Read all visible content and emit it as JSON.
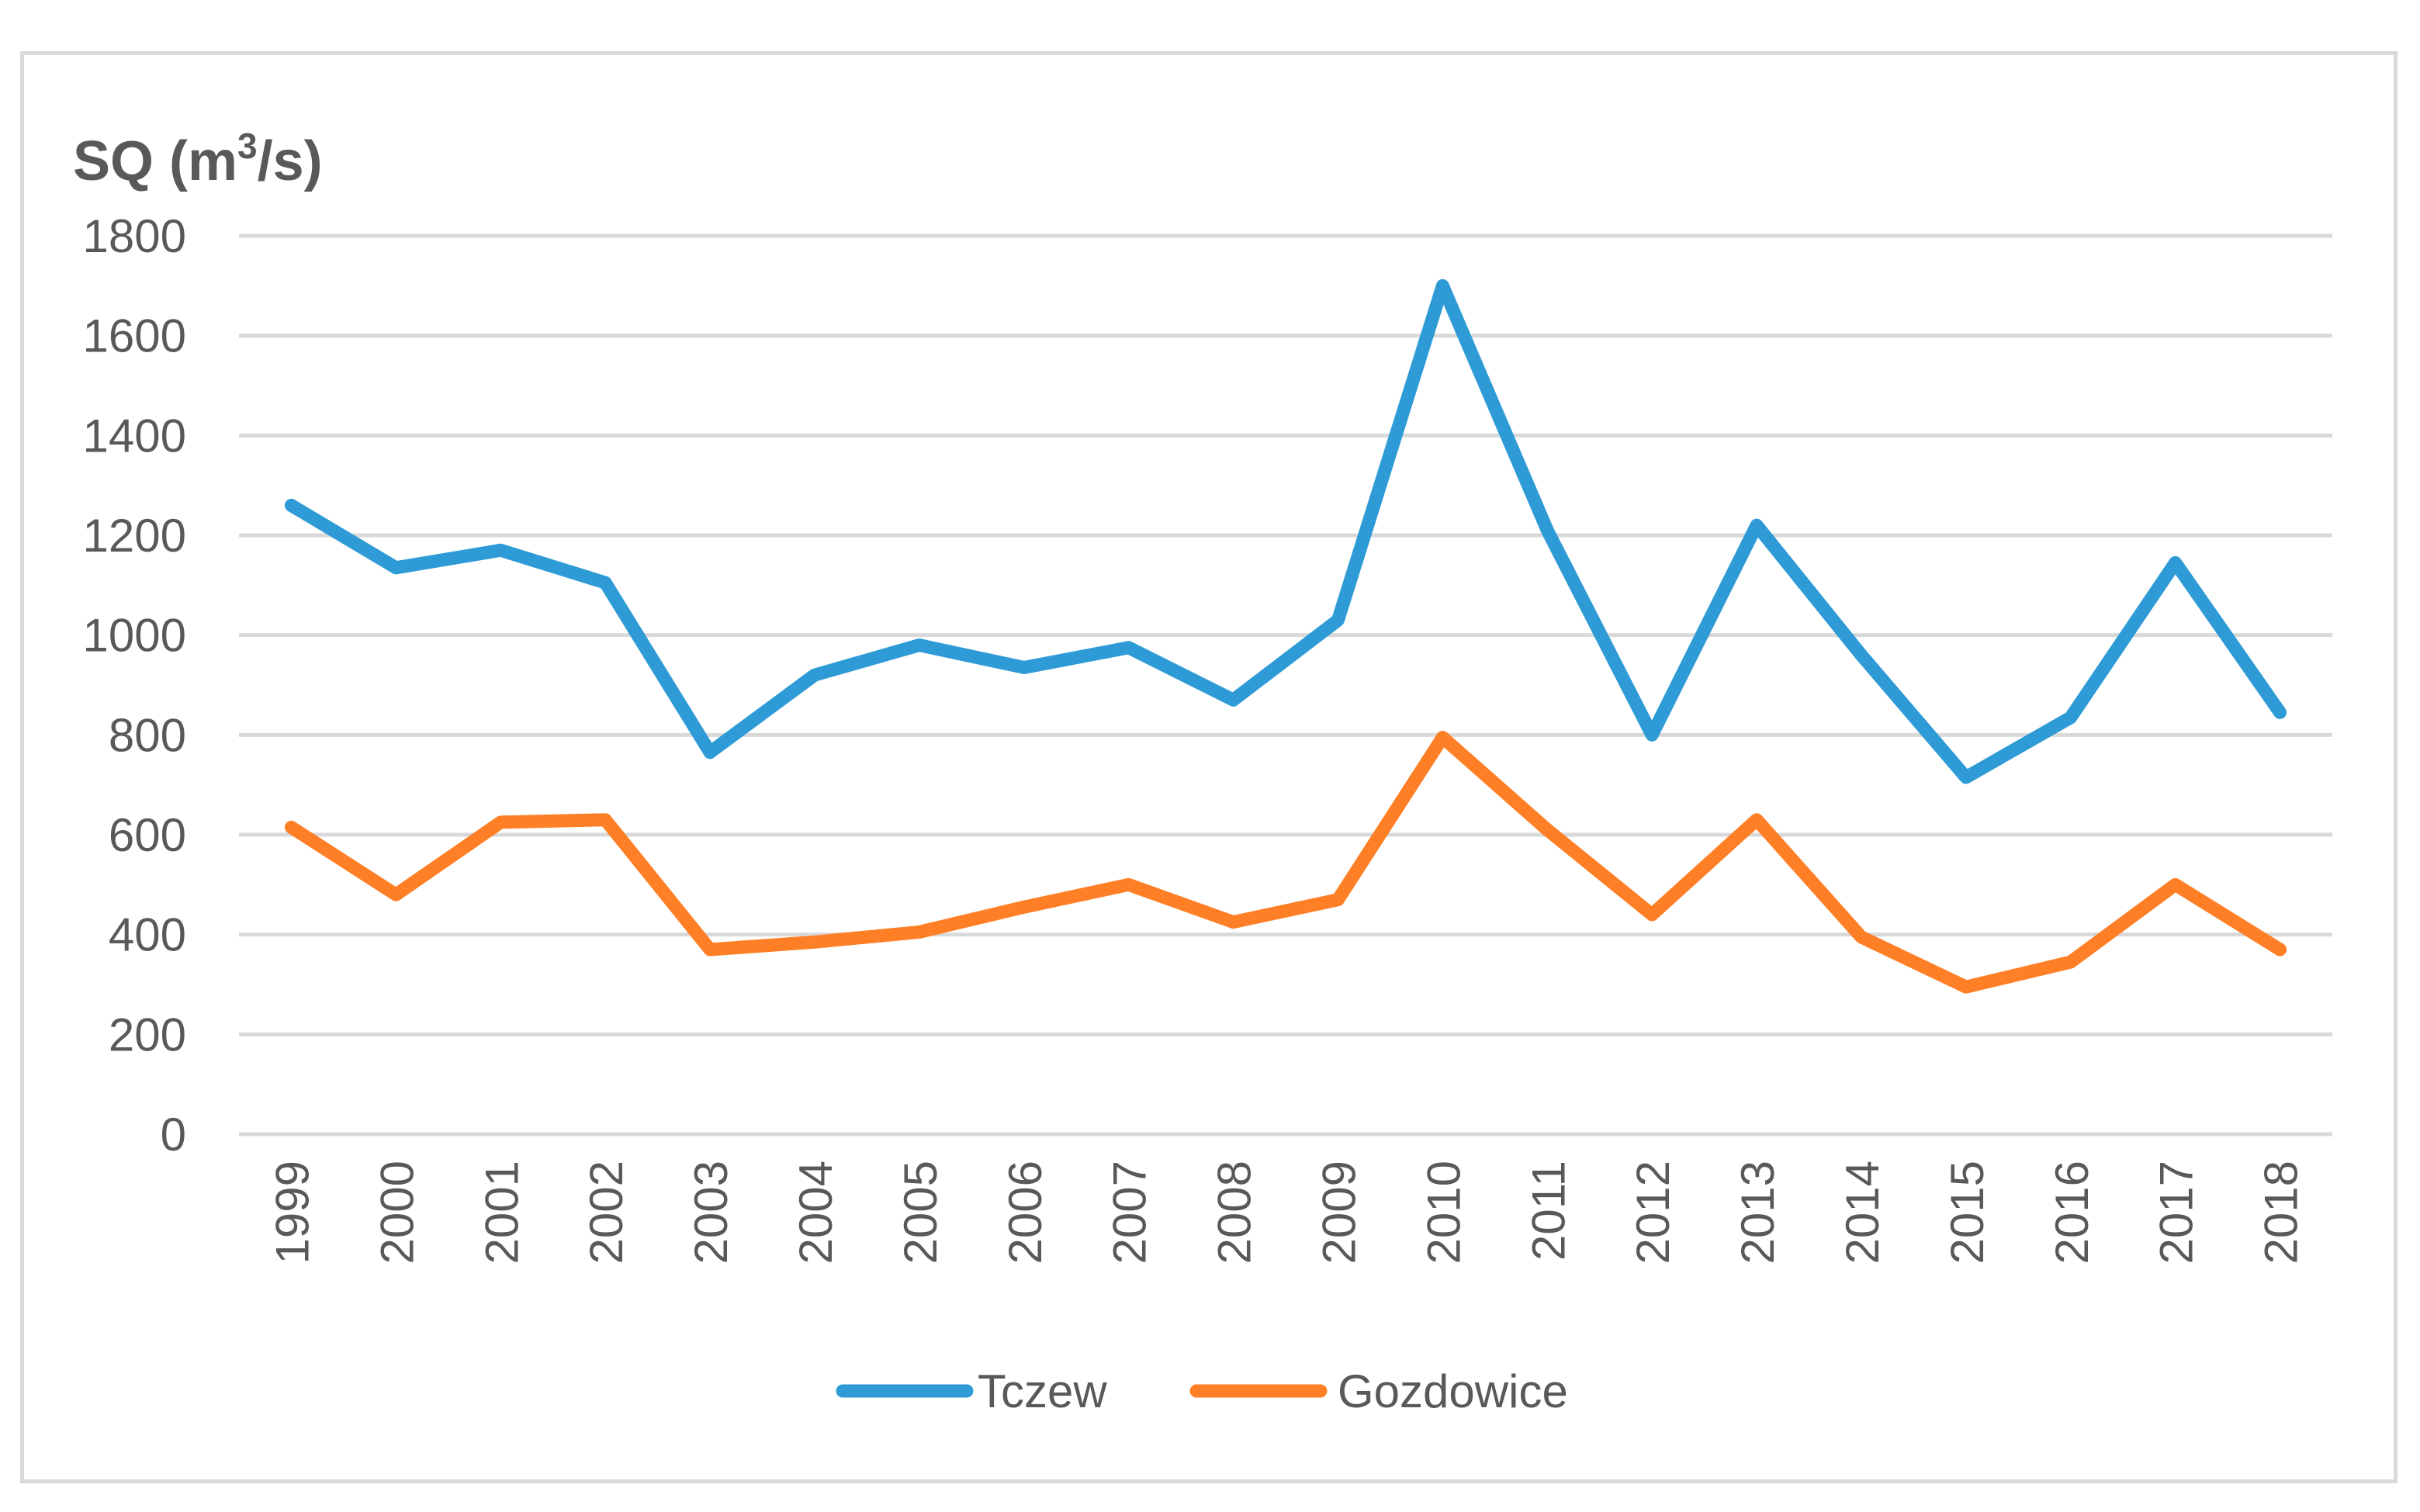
{
  "chart_data": {
    "type": "line",
    "title": "",
    "ylabel": "SQ (m³/s)",
    "ylabel_parts": {
      "main": "SQ (m",
      "sup": "3",
      "tail": "/s)"
    },
    "xlabel": "",
    "ylim": [
      0,
      1800
    ],
    "yticks": [
      0,
      200,
      400,
      600,
      800,
      1000,
      1200,
      1400,
      1600,
      1800
    ],
    "grid": true,
    "legend_position": "bottom",
    "categories": [
      "1999",
      "2000",
      "2001",
      "2002",
      "2003",
      "2004",
      "2005",
      "2006",
      "2007",
      "2008",
      "2009",
      "2010",
      "2011",
      "2012",
      "2013",
      "2014",
      "2015",
      "2016",
      "2017",
      "2018"
    ],
    "series": [
      {
        "name": "Tczew",
        "color": "#2e9bd6",
        "values": [
          1260,
          1135,
          1170,
          1105,
          765,
          920,
          980,
          935,
          975,
          870,
          1030,
          1700,
          1210,
          800,
          1220,
          960,
          715,
          835,
          1145,
          845
        ]
      },
      {
        "name": "Gozdowice",
        "color": "#ff7f27",
        "values": [
          615,
          480,
          625,
          630,
          370,
          385,
          405,
          455,
          500,
          425,
          470,
          795,
          610,
          440,
          630,
          395,
          295,
          345,
          500,
          370
        ]
      }
    ]
  }
}
